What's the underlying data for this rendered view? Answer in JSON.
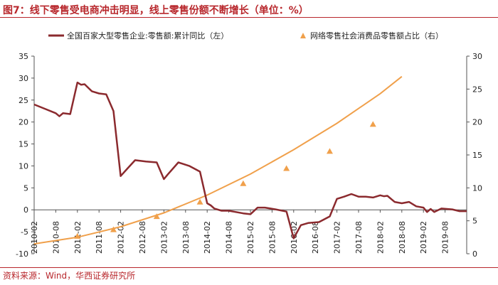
{
  "title": "图7：线下零售受电商冲击明显，线上零售份额不断增长（单位：%）",
  "source": "资料来源：Wind，华西证券研究所",
  "colors": {
    "title": "#b8272c",
    "series1": "#8b2a2e",
    "series2": "#f0a04b"
  },
  "chart_data": {
    "type": "line",
    "title": "图7：线下零售受电商冲击明显，线上零售份额不断增长（单位：%）",
    "xlabel": "",
    "ylabel": "",
    "ylim_left": [
      -10,
      35
    ],
    "ylim_right": [
      0,
      30
    ],
    "yticks_left": [
      -10,
      -5,
      0,
      5,
      10,
      15,
      20,
      25,
      30,
      35
    ],
    "yticks_right": [
      0,
      5,
      10,
      15,
      20,
      25,
      30
    ],
    "grid": false,
    "legend_position": "top",
    "x_ticks": [
      "2010-02",
      "2010-08",
      "2011-02",
      "2011-08",
      "2012-02",
      "2012-08",
      "2013-02",
      "2013-08",
      "2014-02",
      "2014-08",
      "2015-02",
      "2015-08",
      "2016-02",
      "2016-08",
      "2017-02",
      "2017-08",
      "2018-02",
      "2018-08",
      "2019-02",
      "2019-08"
    ],
    "series": [
      {
        "name": "全国百家大型零售企业:零售额:累计同比（左）",
        "axis": "left",
        "style": "line",
        "points": [
          [
            "2010-02",
            24
          ],
          [
            "2010-05",
            23
          ],
          [
            "2010-08",
            22
          ],
          [
            "2010-09",
            21.3
          ],
          [
            "2010-10",
            22
          ],
          [
            "2010-12",
            21.8
          ],
          [
            "2011-02",
            29
          ],
          [
            "2011-03",
            28.5
          ],
          [
            "2011-04",
            28.6
          ],
          [
            "2011-06",
            27
          ],
          [
            "2011-08",
            26.5
          ],
          [
            "2011-10",
            26.3
          ],
          [
            "2011-12",
            22.5
          ],
          [
            "2012-02",
            7.7
          ],
          [
            "2012-04",
            9.5
          ],
          [
            "2012-06",
            11.3
          ],
          [
            "2012-09",
            11
          ],
          [
            "2012-12",
            10.8
          ],
          [
            "2013-02",
            7
          ],
          [
            "2013-03",
            8
          ],
          [
            "2013-06",
            10.8
          ],
          [
            "2013-09",
            10
          ],
          [
            "2013-12",
            8.7
          ],
          [
            "2014-02",
            1.5
          ],
          [
            "2014-03",
            1
          ],
          [
            "2014-04",
            0.3
          ],
          [
            "2014-06",
            -0.2
          ],
          [
            "2014-08",
            -0.2
          ],
          [
            "2014-12",
            -0.8
          ],
          [
            "2015-02",
            -1
          ],
          [
            "2015-04",
            0.5
          ],
          [
            "2015-06",
            0.5
          ],
          [
            "2015-09",
            0.1
          ],
          [
            "2015-12",
            -0.4
          ],
          [
            "2016-02",
            -6.5
          ],
          [
            "2016-04",
            -3.5
          ],
          [
            "2016-06",
            -3
          ],
          [
            "2016-09",
            -2.8
          ],
          [
            "2016-12",
            -1.5
          ],
          [
            "2017-02",
            2.5
          ],
          [
            "2017-04",
            3
          ],
          [
            "2017-06",
            3.6
          ],
          [
            "2017-08",
            3
          ],
          [
            "2017-10",
            3
          ],
          [
            "2017-12",
            2.8
          ],
          [
            "2018-02",
            3.3
          ],
          [
            "2018-03",
            3.1
          ],
          [
            "2018-04",
            3.2
          ],
          [
            "2018-06",
            1.8
          ],
          [
            "2018-08",
            1.5
          ],
          [
            "2018-10",
            1.8
          ],
          [
            "2018-12",
            0.8
          ],
          [
            "2019-02",
            0.5
          ],
          [
            "2019-03",
            -0.5
          ],
          [
            "2019-04",
            0.2
          ],
          [
            "2019-05",
            -0.5
          ],
          [
            "2019-07",
            0.3
          ],
          [
            "2019-10",
            0.1
          ],
          [
            "2019-12",
            -0.3
          ],
          [
            "2020-02",
            -0.3
          ]
        ]
      },
      {
        "name": "网络零售社会消费品零售额占比（右）",
        "axis": "right",
        "style": "markers",
        "points": [
          [
            "2011-02",
            2.6
          ],
          [
            "2011-12",
            3.6
          ],
          [
            "2012-12",
            5.6
          ],
          [
            "2013-12",
            7.8
          ],
          [
            "2014-12",
            10.6
          ],
          [
            "2015-12",
            12.9
          ],
          [
            "2016-12",
            15.5
          ],
          [
            "2017-12",
            19.6
          ]
        ]
      },
      {
        "name": "网络零售社会消费品零售额占比（右）",
        "axis": "right",
        "style": "trend",
        "points": [
          [
            "2010-02",
            1.5
          ],
          [
            "2011-02",
            2.5
          ],
          [
            "2012-02",
            4.1
          ],
          [
            "2013-02",
            6.2
          ],
          [
            "2014-02",
            8.9
          ],
          [
            "2015-02",
            12.1
          ],
          [
            "2016-02",
            15.8
          ],
          [
            "2017-02",
            19.8
          ],
          [
            "2018-02",
            24.3
          ],
          [
            "2018-08",
            26.9
          ]
        ]
      }
    ]
  }
}
